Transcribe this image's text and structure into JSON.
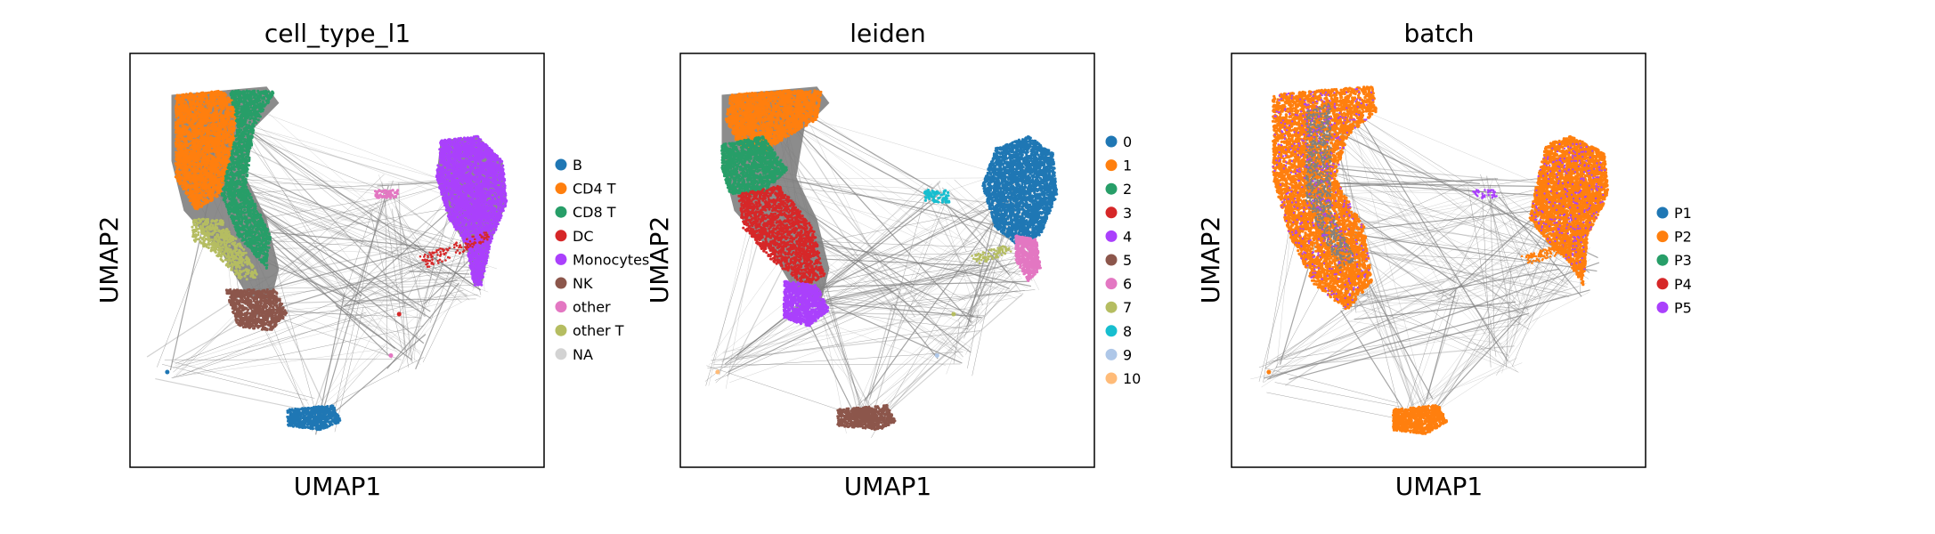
{
  "figure": {
    "background": "#ffffff"
  },
  "chart_data": [
    {
      "type": "scatter",
      "title": "cell_type_l1",
      "xlabel": "UMAP1",
      "ylabel": "UMAP2",
      "grid": false,
      "legend_placement": "right",
      "legend": [
        {
          "label": "B",
          "color": "#1f77b4"
        },
        {
          "label": "CD4 T",
          "color": "#ff7f0e"
        },
        {
          "label": "CD8 T",
          "color": "#279e68"
        },
        {
          "label": "DC",
          "color": "#d62728"
        },
        {
          "label": "Monocytes",
          "color": "#aa40fc"
        },
        {
          "label": "NK",
          "color": "#8c564b"
        },
        {
          "label": "other",
          "color": "#e377c2"
        },
        {
          "label": "other T",
          "color": "#b5bd61"
        },
        {
          "label": "NA",
          "color": "#d3d3d3"
        }
      ]
    },
    {
      "type": "scatter",
      "title": "leiden",
      "xlabel": "UMAP1",
      "ylabel": "UMAP2",
      "grid": false,
      "legend_placement": "right",
      "legend": [
        {
          "label": "0",
          "color": "#1f77b4"
        },
        {
          "label": "1",
          "color": "#ff7f0e"
        },
        {
          "label": "2",
          "color": "#279e68"
        },
        {
          "label": "3",
          "color": "#d62728"
        },
        {
          "label": "4",
          "color": "#aa40fc"
        },
        {
          "label": "5",
          "color": "#8c564b"
        },
        {
          "label": "6",
          "color": "#e377c2"
        },
        {
          "label": "7",
          "color": "#b5bd61"
        },
        {
          "label": "8",
          "color": "#17becf"
        },
        {
          "label": "9",
          "color": "#aec7e8"
        },
        {
          "label": "10",
          "color": "#ffbb78"
        }
      ]
    },
    {
      "type": "scatter",
      "title": "batch",
      "xlabel": "UMAP1",
      "ylabel": "UMAP2",
      "grid": false,
      "legend_placement": "right",
      "legend": [
        {
          "label": "P1",
          "color": "#1f77b4"
        },
        {
          "label": "P2",
          "color": "#ff7f0e"
        },
        {
          "label": "P3",
          "color": "#279e68"
        },
        {
          "label": "P4",
          "color": "#d62728"
        },
        {
          "label": "P5",
          "color": "#aa40fc"
        }
      ]
    }
  ]
}
